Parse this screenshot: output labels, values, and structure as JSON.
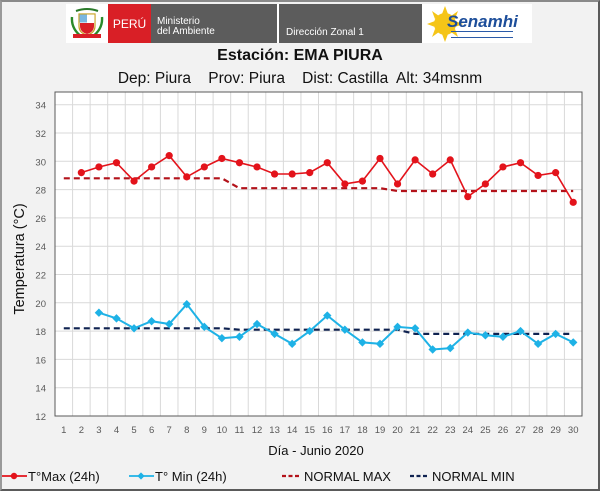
{
  "header": {
    "country_label": "PERÚ",
    "ministry_line1": "Ministerio",
    "ministry_line2": "del Ambiente",
    "office_label": "Dirección Zonal 1",
    "agency_logo_text": "Senamhi"
  },
  "colors": {
    "tmax": "#e3131b",
    "tmin": "#1eb2e6",
    "normal_max": "#b3121a",
    "normal_min": "#0f2250",
    "peru_red": "#d91f26",
    "header_gray": "#5c5c5c"
  },
  "chart_data": {
    "type": "line",
    "title": "Estación: EMA PIURA",
    "subtitle": "Dep: Piura    Prov: Piura    Dist: Castilla  Alt: 34msnm",
    "xlabel": "Día - Junio 2020",
    "ylabel": "Temperatura (°C)",
    "ylim": [
      12,
      34
    ],
    "yticks": [
      12,
      14,
      16,
      18,
      20,
      22,
      24,
      26,
      28,
      30,
      32,
      34
    ],
    "categories": [
      "1",
      "2",
      "3",
      "4",
      "5",
      "6",
      "7",
      "8",
      "9",
      "10",
      "11",
      "12",
      "13",
      "14",
      "15",
      "16",
      "17",
      "18",
      "19",
      "20",
      "21",
      "22",
      "23",
      "24",
      "25",
      "26",
      "27",
      "28",
      "29",
      "30"
    ],
    "grid": true,
    "legend_position": "bottom",
    "series": [
      {
        "name": "T°Max (24h)",
        "style": "solid-marker-circle",
        "values": [
          null,
          29.2,
          29.6,
          29.9,
          28.6,
          29.6,
          30.4,
          28.9,
          29.6,
          30.2,
          29.9,
          29.6,
          29.1,
          29.1,
          29.2,
          29.9,
          28.4,
          28.6,
          30.2,
          28.4,
          30.1,
          29.1,
          30.1,
          27.5,
          28.4,
          29.6,
          29.9,
          29.0,
          29.2,
          27.1
        ]
      },
      {
        "name": "T° Min (24h)",
        "style": "solid-marker-diamond",
        "values": [
          null,
          null,
          19.3,
          18.9,
          18.2,
          18.7,
          18.5,
          19.9,
          18.3,
          17.5,
          17.6,
          18.5,
          17.8,
          17.1,
          18.0,
          19.1,
          18.1,
          17.2,
          17.1,
          18.3,
          18.2,
          16.7,
          16.8,
          17.9,
          17.7,
          17.6,
          18.0,
          17.1,
          17.8,
          17.2
        ]
      },
      {
        "name": "NORMAL MAX",
        "style": "dashed",
        "values": [
          28.8,
          28.8,
          28.8,
          28.8,
          28.8,
          28.8,
          28.8,
          28.8,
          28.8,
          28.8,
          28.1,
          28.1,
          28.1,
          28.1,
          28.1,
          28.1,
          28.1,
          28.1,
          28.1,
          27.9,
          27.9,
          27.9,
          27.9,
          27.9,
          27.9,
          27.9,
          27.9,
          27.9,
          27.9,
          27.9
        ]
      },
      {
        "name": "NORMAL MIN",
        "style": "dashed",
        "values": [
          18.2,
          18.2,
          18.2,
          18.2,
          18.2,
          18.2,
          18.2,
          18.2,
          18.2,
          18.2,
          18.1,
          18.1,
          18.1,
          18.1,
          18.1,
          18.1,
          18.1,
          18.1,
          18.1,
          18.1,
          17.8,
          17.8,
          17.8,
          17.8,
          17.8,
          17.8,
          17.8,
          17.8,
          17.8,
          17.8
        ]
      }
    ]
  }
}
